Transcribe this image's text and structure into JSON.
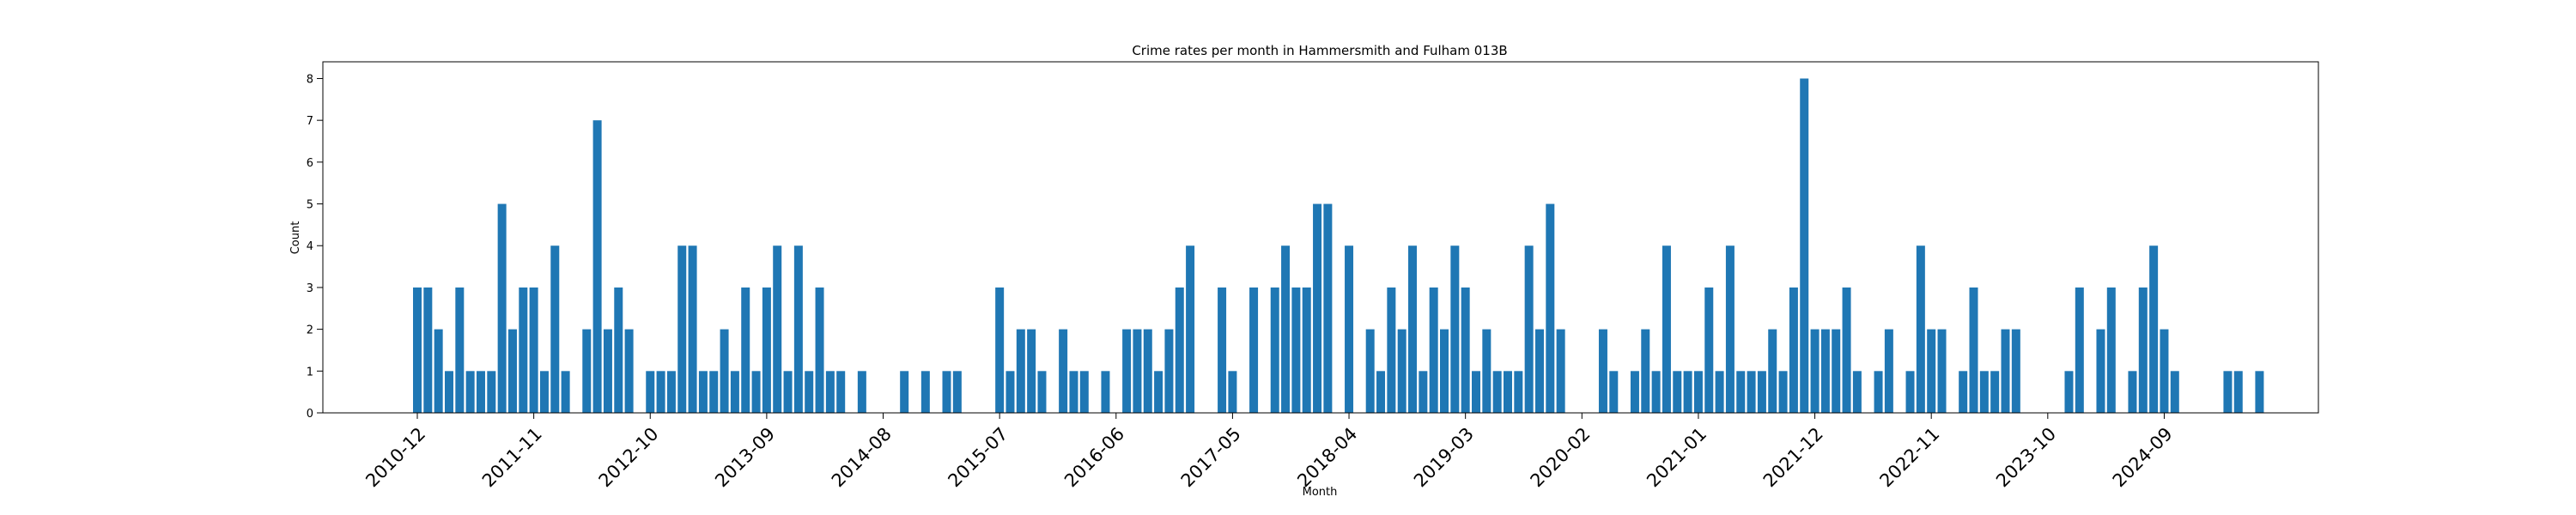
{
  "chart_data": {
    "type": "bar",
    "title": "Crime rates per month in Hammersmith and Fulham 013B",
    "xlabel": "Month",
    "ylabel": "Count",
    "ylim": [
      0,
      8.4
    ],
    "yticks": [
      0,
      1,
      2,
      3,
      4,
      5,
      6,
      7,
      8
    ],
    "xtick_labels": [
      "2010-12",
      "2011-11",
      "2012-10",
      "2013-09",
      "2014-08",
      "2015-07",
      "2016-06",
      "2017-05",
      "2018-04",
      "2019-03",
      "2020-02",
      "2021-01",
      "2021-12",
      "2022-11",
      "2023-10",
      "2024-09"
    ],
    "xtick_rotation_deg": 45,
    "grid": false,
    "legend": "none",
    "bar_color": "#1f77b4",
    "start_month": "2010-12",
    "values": [
      3,
      3,
      2,
      1,
      3,
      1,
      1,
      1,
      5,
      2,
      3,
      3,
      1,
      4,
      1,
      0,
      2,
      7,
      2,
      3,
      2,
      0,
      1,
      1,
      1,
      4,
      4,
      1,
      1,
      2,
      1,
      3,
      1,
      3,
      4,
      1,
      4,
      1,
      3,
      1,
      1,
      0,
      1,
      0,
      0,
      0,
      1,
      0,
      1,
      0,
      1,
      1,
      0,
      0,
      0,
      3,
      1,
      2,
      2,
      1,
      0,
      2,
      1,
      1,
      0,
      1,
      0,
      2,
      2,
      2,
      1,
      2,
      3,
      4,
      0,
      0,
      3,
      1,
      0,
      3,
      0,
      3,
      4,
      3,
      3,
      5,
      5,
      0,
      4,
      0,
      2,
      1,
      3,
      2,
      4,
      1,
      3,
      2,
      4,
      3,
      1,
      2,
      1,
      1,
      1,
      4,
      2,
      5,
      2,
      0,
      0,
      0,
      2,
      1,
      0,
      1,
      2,
      1,
      4,
      1,
      1,
      1,
      3,
      1,
      4,
      1,
      1,
      1,
      2,
      1,
      3,
      8,
      2,
      2,
      2,
      3,
      1,
      0,
      1,
      2,
      0,
      1,
      4,
      2,
      2,
      0,
      1,
      3,
      1,
      1,
      2,
      2,
      0,
      0,
      0,
      0,
      1,
      3,
      0,
      2,
      3,
      0,
      1,
      3,
      4,
      2,
      1,
      0,
      0,
      0,
      0,
      1,
      1,
      0,
      1
    ]
  }
}
